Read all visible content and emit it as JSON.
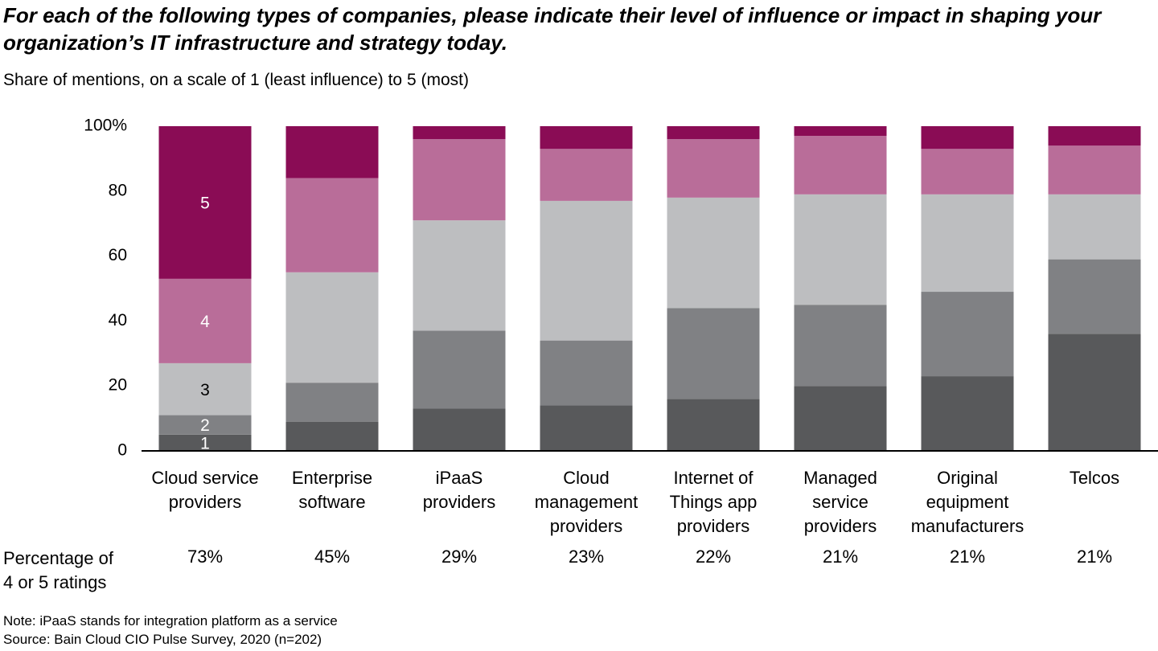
{
  "chart_data": {
    "type": "stacked_bar",
    "title": "For each of the following types of companies, please indicate their level of influence or impact in shaping your organization’s IT infrastructure and strategy today.",
    "subtitle": "Share of mentions, on a scale of 1 (least influence) to 5 (most)",
    "categories": [
      "Cloud service\nproviders",
      "Enterprise\nsoftware",
      "iPaaS\nproviders",
      "Cloud\nmanagement\nproviders",
      "Internet of\nThings app\nproviders",
      "Managed\nservice\nproviders",
      "Original\nequipment\nmanufacturers",
      "Telcos"
    ],
    "series": [
      {
        "name": "1",
        "color": "#58595b",
        "values": [
          5,
          9,
          13,
          14,
          16,
          20,
          23,
          36
        ]
      },
      {
        "name": "2",
        "color": "#808184",
        "values": [
          6,
          12,
          24,
          20,
          28,
          25,
          26,
          23
        ]
      },
      {
        "name": "3",
        "color": "#bdbec0",
        "values": [
          16,
          34,
          34,
          43,
          34,
          34,
          30,
          20
        ]
      },
      {
        "name": "4",
        "color": "#b96d99",
        "values": [
          26,
          29,
          25,
          16,
          18,
          18,
          14,
          15
        ]
      },
      {
        "name": "5",
        "color": "#8a0c55",
        "values": [
          47,
          16,
          4,
          7,
          4,
          3,
          7,
          6
        ]
      }
    ],
    "ylim": [
      0,
      100
    ],
    "yticks": [
      0,
      20,
      40,
      60,
      80,
      {
        "value": 100,
        "label": "100%"
      }
    ],
    "top2_share": {
      "label": "Percentage of\n4 or 5 ratings",
      "values": [
        73,
        45,
        29,
        23,
        22,
        21,
        21,
        21
      ],
      "value_labels": [
        "73%",
        "45%",
        "29%",
        "23%",
        "22%",
        "21%",
        "21%",
        "21%"
      ]
    },
    "notes": [
      "Note: iPaaS stands for integration platform as a service",
      "Source: Bain Cloud CIO Pulse Survey, 2020 (n=202)"
    ]
  }
}
